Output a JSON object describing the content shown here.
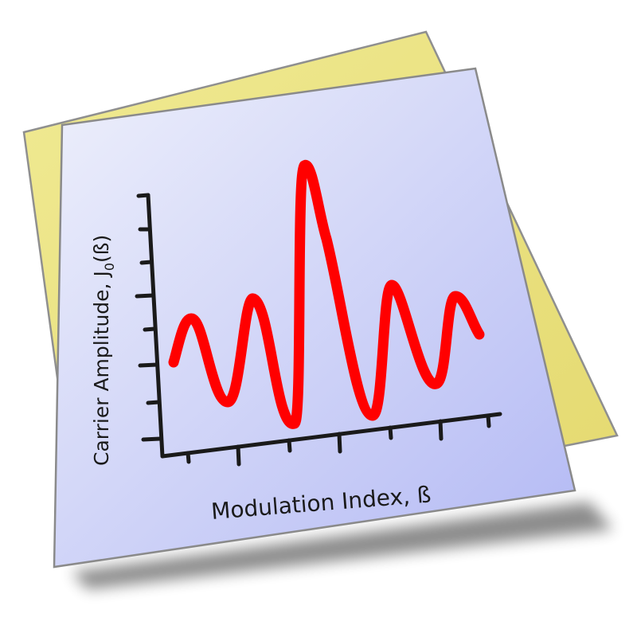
{
  "icon": {
    "name": "modulation-plot-document-icon",
    "colors": {
      "back_sheet": "#ebe281",
      "front_sheet_top": "#eef0fb",
      "front_sheet_bottom": "#b7bdf5",
      "curve": "#ff0000",
      "axes": "#1a1a1a"
    }
  },
  "plot": {
    "xlabel": "Modulation Index, ß",
    "ylabel_prefix": "Carrier Amplitude, J",
    "ylabel_subscript": "0",
    "ylabel_suffix": "(ß)"
  }
}
